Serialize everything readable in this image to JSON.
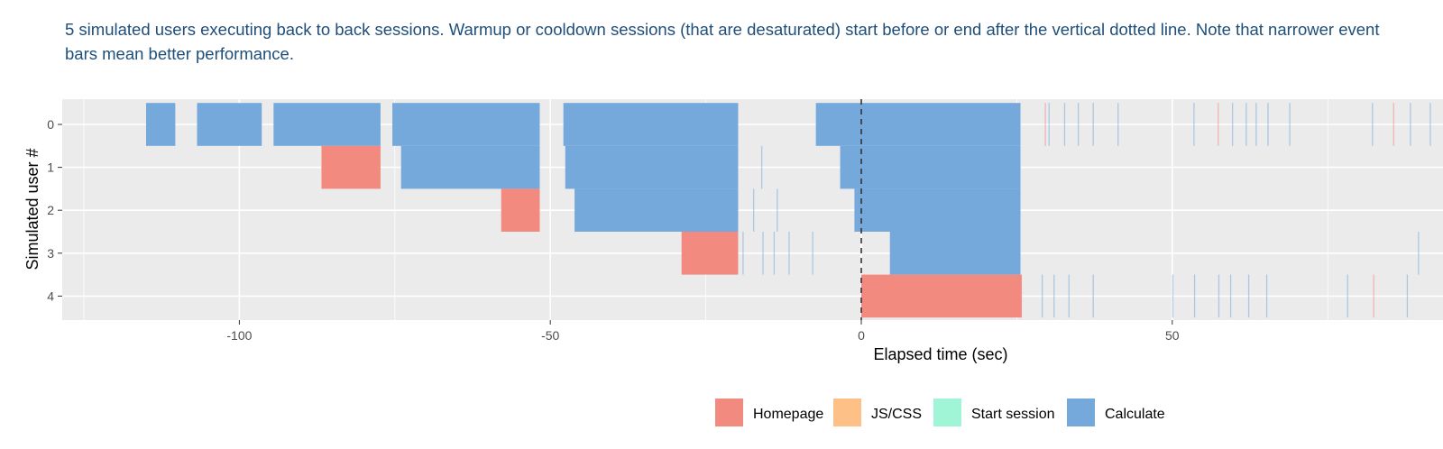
{
  "description": "5 simulated users executing back to back sessions. Warmup or cooldown sessions (that are desaturated) start before or end after the vertical dotted line. Note that narrower event bars mean better performance.",
  "chart_data": {
    "type": "timeline",
    "xlabel": "Elapsed time (sec)",
    "ylabel": "Simulated user #",
    "xlim": [
      -125,
      94
    ],
    "x_ticks": [
      -100,
      -50,
      0,
      50
    ],
    "x_tick_labels": [
      "-100",
      "-50",
      "0",
      "50"
    ],
    "y_categories": [
      "0",
      "1",
      "2",
      "3",
      "4"
    ],
    "grid": true,
    "reference_line": {
      "x": 0,
      "style": "dashed"
    },
    "legend": {
      "position": "bottom",
      "entries": [
        {
          "label": "Homepage",
          "color": "#f28a80"
        },
        {
          "label": "JS/CSS",
          "color": "#fdc086"
        },
        {
          "label": "Start session",
          "color": "#9ff5d6"
        },
        {
          "label": "Calculate",
          "color": "#76a9db"
        }
      ]
    },
    "events": [
      {
        "user": 0,
        "type": "Calculate",
        "start": -115,
        "end": -110.3
      },
      {
        "user": 0,
        "type": "Calculate",
        "start": -106.8,
        "end": -96.4
      },
      {
        "user": 0,
        "type": "Calculate",
        "start": -94.5,
        "end": -77.3
      },
      {
        "user": 0,
        "type": "Calculate",
        "start": -75.4,
        "end": -51.7
      },
      {
        "user": 0,
        "type": "Calculate",
        "start": -47.9,
        "end": -19.8
      },
      {
        "user": 0,
        "type": "Calculate",
        "start": -7.3,
        "end": 25.6
      },
      {
        "user": 1,
        "type": "Homepage",
        "start": -86.8,
        "end": -77.3
      },
      {
        "user": 1,
        "type": "Calculate",
        "start": -74,
        "end": -51.7
      },
      {
        "user": 1,
        "type": "Calculate",
        "start": -47.6,
        "end": -19.8
      },
      {
        "user": 1,
        "type": "Calculate",
        "start": -3.4,
        "end": 25.6
      },
      {
        "user": 2,
        "type": "Homepage",
        "start": -57.9,
        "end": -51.7
      },
      {
        "user": 2,
        "type": "Calculate",
        "start": -46.1,
        "end": -19.8
      },
      {
        "user": 2,
        "type": "Calculate",
        "start": -1.1,
        "end": 25.6
      },
      {
        "user": 3,
        "type": "Homepage",
        "start": -28.9,
        "end": -19.8
      },
      {
        "user": 3,
        "type": "Calculate",
        "start": 4.6,
        "end": 25.6
      },
      {
        "user": 4,
        "type": "Homepage",
        "start": 0,
        "end": 25.8
      }
    ],
    "thin_events": [
      {
        "user": 1,
        "type": "Calculate",
        "x": -16.1
      },
      {
        "user": 2,
        "type": "Calculate",
        "x": -17.4
      },
      {
        "user": 2,
        "type": "Calculate",
        "x": -13.6
      },
      {
        "user": 3,
        "type": "Calculate",
        "x": -19.1
      },
      {
        "user": 3,
        "type": "Calculate",
        "x": -15.9
      },
      {
        "user": 3,
        "type": "Calculate",
        "x": -14.1
      },
      {
        "user": 3,
        "type": "Calculate",
        "x": -11.7
      },
      {
        "user": 3,
        "type": "Calculate",
        "x": -7.9
      },
      {
        "user": 4,
        "type": "Calculate",
        "x": 29
      },
      {
        "user": 4,
        "type": "Calculate",
        "x": 30.9
      },
      {
        "user": 4,
        "type": "Calculate",
        "x": 33.3
      },
      {
        "user": 4,
        "type": "Calculate",
        "x": 37.2
      },
      {
        "user": 4,
        "type": "Calculate",
        "x": 50
      },
      {
        "user": 4,
        "type": "Calculate",
        "x": 53.5
      },
      {
        "user": 4,
        "type": "Calculate",
        "x": 57.4
      },
      {
        "user": 4,
        "type": "Calculate",
        "x": 59.3
      },
      {
        "user": 4,
        "type": "Calculate",
        "x": 62.2
      },
      {
        "user": 4,
        "type": "Calculate",
        "x": 65.1
      },
      {
        "user": 4,
        "type": "Calculate",
        "x": 78.1
      },
      {
        "user": 4,
        "type": "Homepage",
        "x": 82.3
      },
      {
        "user": 4,
        "type": "Calculate",
        "x": 87.7
      },
      {
        "user": 0,
        "type": "Homepage",
        "x": 29.5
      },
      {
        "user": 0,
        "type": "Calculate",
        "x": 30.1
      },
      {
        "user": 0,
        "type": "Calculate",
        "x": 32.6
      },
      {
        "user": 0,
        "type": "Calculate",
        "x": 34.8
      },
      {
        "user": 0,
        "type": "Calculate",
        "x": 37.2
      },
      {
        "user": 0,
        "type": "Calculate",
        "x": 41.2
      },
      {
        "user": 0,
        "type": "Calculate",
        "x": 53.4
      },
      {
        "user": 0,
        "type": "Homepage",
        "x": 57.3
      },
      {
        "user": 0,
        "type": "Calculate",
        "x": 59.6
      },
      {
        "user": 0,
        "type": "Calculate",
        "x": 61.8
      },
      {
        "user": 0,
        "type": "Calculate",
        "x": 63.4
      },
      {
        "user": 0,
        "type": "Calculate",
        "x": 65.3
      },
      {
        "user": 0,
        "type": "Calculate",
        "x": 68.8
      },
      {
        "user": 0,
        "type": "Calculate",
        "x": 82.1
      },
      {
        "user": 0,
        "type": "Homepage",
        "x": 85.5
      },
      {
        "user": 0,
        "type": "Calculate",
        "x": 88.2
      },
      {
        "user": 0,
        "type": "Calculate",
        "x": 91.4
      },
      {
        "user": 3,
        "type": "Calculate",
        "x": 89.5
      }
    ]
  }
}
